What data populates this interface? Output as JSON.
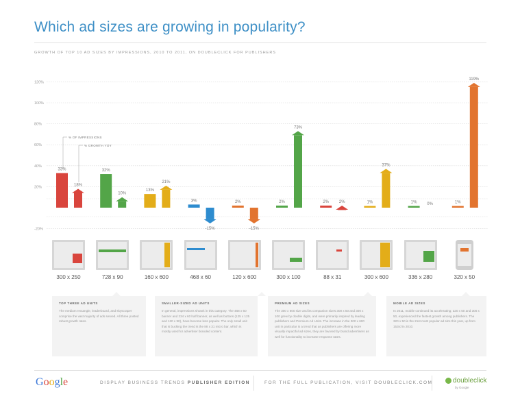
{
  "title": "Which ad sizes are growing in popularity?",
  "subtitle": "Growth of top 10 ad sizes by impressions, 2010 to 2011, on DoubleClick for Publishers",
  "colors": {
    "red": "#d9453d",
    "green": "#53a548",
    "yellow": "#e3ad19",
    "blue": "#2e8ccf",
    "orange": "#e2742f",
    "lightgreen": "#72b863"
  },
  "chart_data": {
    "type": "bar",
    "title": "Which ad sizes are growing in popularity?",
    "ylim": [
      -20,
      120
    ],
    "yticks": [
      -20,
      20,
      40,
      60,
      80,
      100,
      120
    ],
    "ytick_labels": [
      "-20%",
      "20%",
      "40%",
      "60%",
      "80%",
      "100%",
      "120%"
    ],
    "grid": true,
    "legend_position": "top-left",
    "series": [
      {
        "name": "% of impressions",
        "values": [
          33,
          32,
          13,
          3,
          2,
          2,
          2,
          1,
          1,
          1
        ]
      },
      {
        "name": "% growth yoy",
        "values": [
          18,
          10,
          21,
          -15,
          -15,
          73,
          2,
          37,
          0,
          119
        ]
      }
    ],
    "value_labels": {
      "share": [
        "33%",
        "32%",
        "13%",
        "3%",
        "2%",
        "2%",
        "2%",
        "1%",
        "1%",
        "1%"
      ],
      "growth": [
        "18%",
        "10%",
        "21%",
        "-15%",
        "-15%",
        "73%",
        "2%",
        "37%",
        "0%",
        "119%"
      ]
    },
    "categories": [
      "300 x 250",
      "728 x 90",
      "160 x 600",
      "468 x 60",
      "120 x 600",
      "300 x 100",
      "88 x 31",
      "300 x 600",
      "336 x 280",
      "320 x 50"
    ],
    "category_colors": [
      "#d9453d",
      "#53a548",
      "#e3ad19",
      "#2e8ccf",
      "#e2742f",
      "#53a548",
      "#d9453d",
      "#e3ad19",
      "#53a548",
      "#e2742f"
    ]
  },
  "descriptions": [
    {
      "heading": "Top three ad units",
      "body": "The medium rectangle, leaderboard, and skyscraper comprise the vast majority of ads served. All three posted robust growth rates."
    },
    {
      "heading": "Smaller-sized ad units",
      "body": "In general, impressions shrank in this category. The 468 x 60 banner and 234 x 60 half banner, as well as buttons (125 x 125 and 120 x 90), have become less popular. The only small unit that is bucking the trend is the 88 x 31 micro bar, which is mostly used for advertiser branded content."
    },
    {
      "heading": "Premium ad sizes",
      "body": "The 300 x 600 size and its companion sizes 300 x 50 and 300 x 100 grew by double digits, and were primarily inspired by leading publishers and Premium Ad Units. The increase in the 300 x 600 unit in particular is a trend that as publishers are offering more visually impactful ad sizes, they are favored by brand advertisers as well for functionality to increase response rates."
    },
    {
      "heading": "Mobile ad sizes",
      "body": "In 2011, mobile continued its accelerating; 320 x 50 and 300 x 50, experienced the fastest growth among publishers. The 320 x 50 is the 21st most popular ad size this year, up from 153rd in 2010."
    }
  ],
  "footer": {
    "logo": "Google",
    "edition_prefix": "DISPLAY BUSINESS TRENDS ",
    "edition_bold": "PUBLISHER EDITION",
    "cta": "FOR THE FULL PUBLICATION, VISIT DOUBLECLICK.COM",
    "brand": "doubleclick",
    "brand_by": "by Google"
  }
}
